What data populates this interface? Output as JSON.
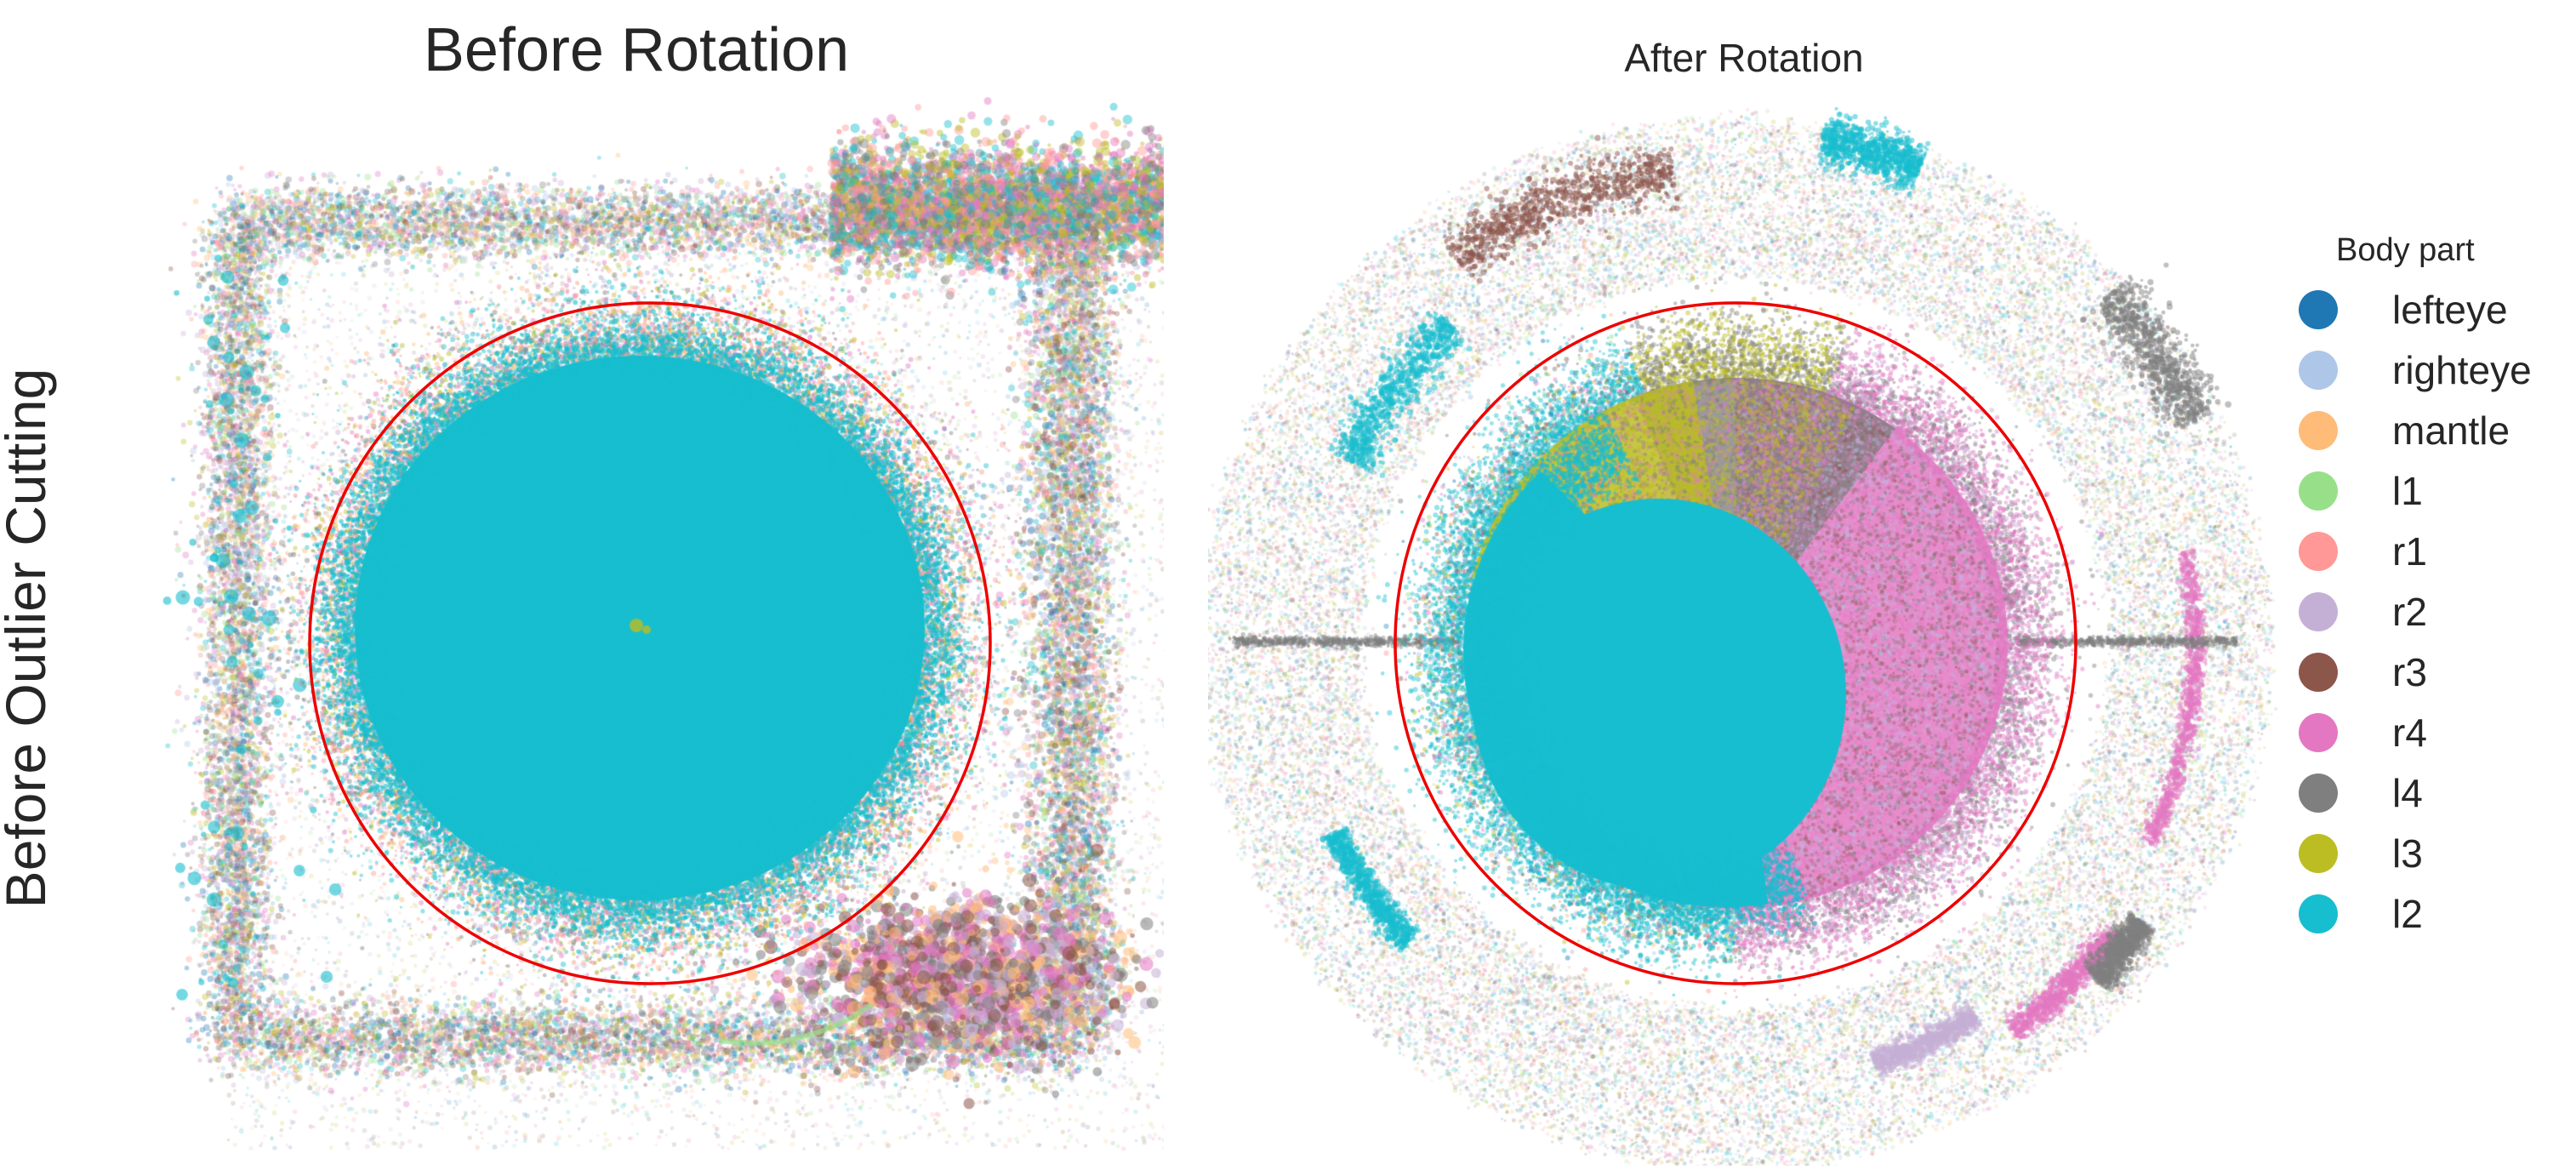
{
  "figure": {
    "row_label": "Before Outlier Cutting"
  },
  "chart_data": [
    {
      "type": "scatter",
      "title": "Before Rotation",
      "xlabel": "",
      "ylabel": "",
      "grid": false,
      "axes_visible": false,
      "reference_circle": {
        "color": "#ee0000",
        "description": "red circle enclosing dense point cloud"
      },
      "series_density": [
        {
          "name": "l2",
          "share": 0.55,
          "region": "dense disk"
        },
        {
          "name": "l3",
          "share": 0.08,
          "region": "disk edge and corners"
        },
        {
          "name": "r4",
          "share": 0.08,
          "region": "disk edge and square frame"
        },
        {
          "name": "l4",
          "share": 0.08,
          "region": "square frame and top-right band"
        },
        {
          "name": "r3",
          "share": 0.05,
          "region": "bottom-right cluster"
        },
        {
          "name": "r2",
          "share": 0.06,
          "region": "bottom-right cluster"
        },
        {
          "name": "r1",
          "share": 0.04,
          "region": "scattered"
        },
        {
          "name": "l1",
          "share": 0.03,
          "region": "arc below circle"
        },
        {
          "name": "mantle",
          "share": 0.02,
          "region": "scattered"
        },
        {
          "name": "righteye",
          "share": 0.005,
          "region": "top small cluster"
        },
        {
          "name": "lefteye",
          "share": 0.005,
          "region": "top small cluster"
        }
      ]
    },
    {
      "type": "scatter",
      "title": "After Rotation",
      "xlabel": "",
      "ylabel": "",
      "grid": false,
      "axes_visible": false,
      "reference_circle": {
        "color": "#ee0000",
        "description": "red circle enclosing dense point cloud"
      },
      "series_density": [
        {
          "name": "l2",
          "share": 0.3,
          "region": "lower-left quadrant of disk and outer arcs"
        },
        {
          "name": "l3",
          "share": 0.15,
          "region": "upper-left of disk"
        },
        {
          "name": "l4",
          "share": 0.12,
          "region": "upper-center of disk"
        },
        {
          "name": "r4",
          "share": 0.18,
          "region": "right half of disk"
        },
        {
          "name": "r3",
          "share": 0.04,
          "region": "outer arcs"
        },
        {
          "name": "r2",
          "share": 0.06,
          "region": "right edge of disk and outer arcs"
        },
        {
          "name": "r1",
          "share": 0.04,
          "region": "scattered"
        },
        {
          "name": "l1",
          "share": 0.03,
          "region": "scattered"
        },
        {
          "name": "mantle",
          "share": 0.03,
          "region": "scattered"
        },
        {
          "name": "righteye",
          "share": 0.03,
          "region": "right of disk"
        },
        {
          "name": "lefteye",
          "share": 0.02,
          "region": "scattered"
        }
      ]
    }
  ],
  "legend": {
    "title": "Body part",
    "items": [
      {
        "label": "lefteye",
        "color": "#1f77b4"
      },
      {
        "label": "righteye",
        "color": "#aec7e8"
      },
      {
        "label": "mantle",
        "color": "#ffbb78"
      },
      {
        "label": "l1",
        "color": "#98df8a"
      },
      {
        "label": "r1",
        "color": "#ff9896"
      },
      {
        "label": "r2",
        "color": "#c5b0d5"
      },
      {
        "label": "r3",
        "color": "#8c564b"
      },
      {
        "label": "r4",
        "color": "#e377c2"
      },
      {
        "label": "l4",
        "color": "#7f7f7f"
      },
      {
        "label": "l3",
        "color": "#bcbd22"
      },
      {
        "label": "l2",
        "color": "#17becf"
      }
    ]
  }
}
